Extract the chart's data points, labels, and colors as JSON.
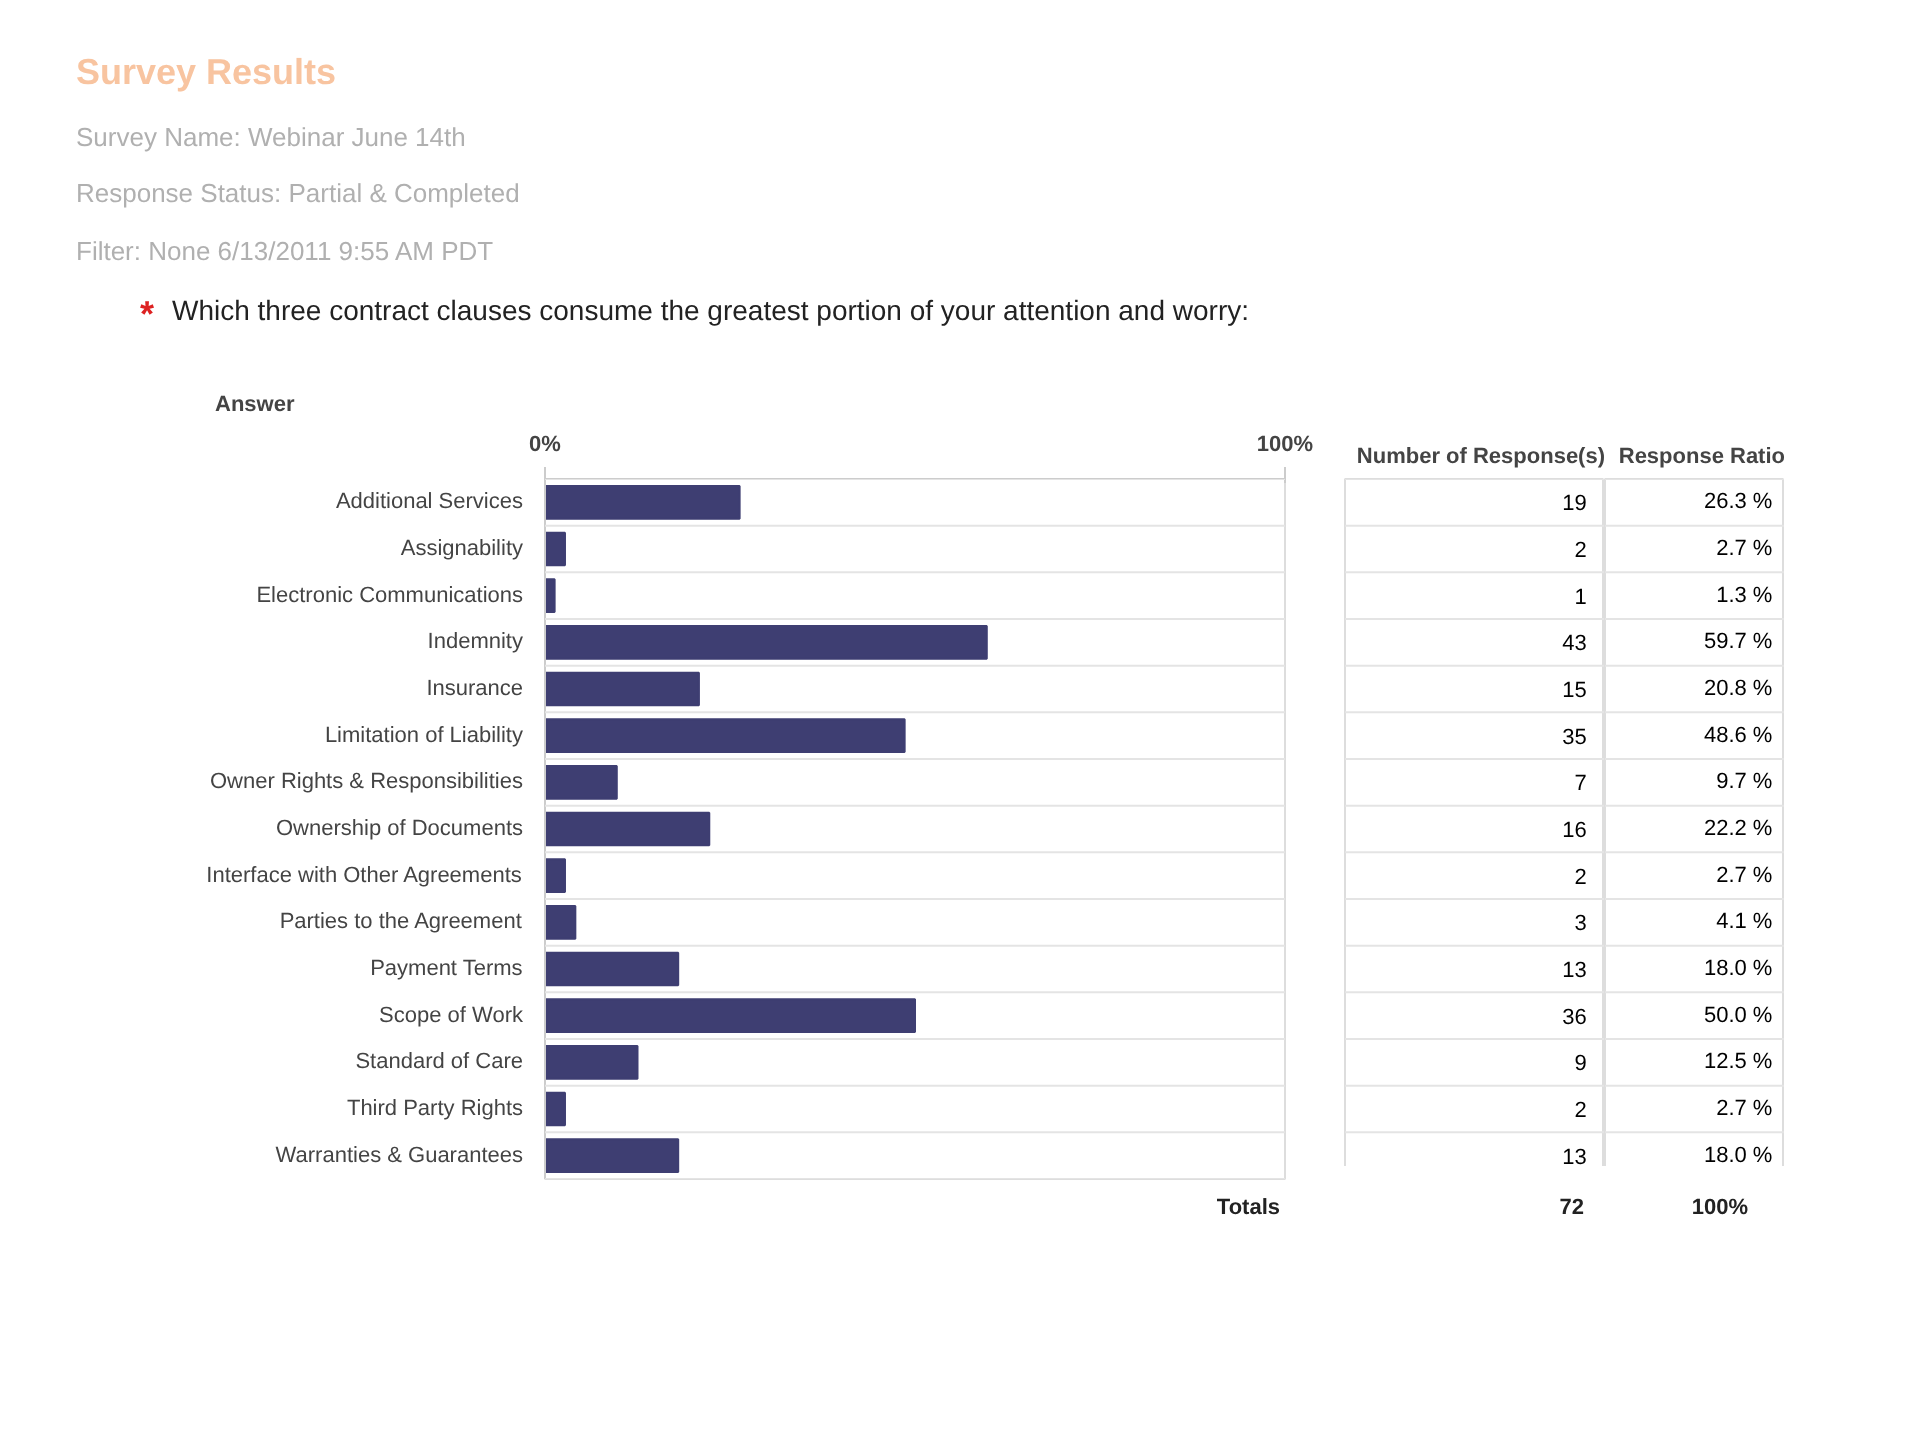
{
  "chart_data": {
    "type": "bar",
    "orientation": "horizontal",
    "title": "Survey Results",
    "annotations": [
      "Survey Name: Webinar June 14th",
      "Response Status: Partial & Completed",
      "Filter: None    6/13/2011 9:55 AM PDT",
      "*",
      "Which three contract clauses consume the greatest portion of your attention and worry:",
      "Answer",
      "Number of Response(s)",
      "Totals",
      "72",
      "100%",
      "19",
      "2",
      "1",
      "43",
      "15",
      "35",
      "7",
      "16",
      "2",
      "3",
      "13",
      "36",
      "9",
      "2",
      "13"
    ],
    "categories": [
      "Additional Services",
      "Assignability",
      "Electronic Communications",
      "Indemnity",
      "Insurance",
      "Limitation of Liability",
      "Owner Rights & Responsibilities",
      "Ownership of Documents",
      "Interface with Other Agreements",
      "Parties to the Agreement",
      "Payment Terms",
      "Scope of Work",
      "Standard of Care",
      "Third Party Rights",
      "Warranties & Guarantees"
    ],
    "series": [
      {
        "name": "Response Ratio",
        "color": "#3e3e72",
        "values": [
          26.3,
          2.7,
          1.3,
          59.7,
          20.8,
          48.6,
          9.7,
          22.2,
          2.7,
          4.1,
          18.0,
          50.0,
          12.5,
          2.7,
          18.0
        ],
        "value_labels": [
          "26.3 %",
          "2.7 %",
          "1.3 %",
          "59.7 %",
          "20.8 %",
          "48.6 %",
          "9.7 %",
          "22.2 %",
          "2.7 %",
          "4.1 %",
          "18.0 %",
          "50.0 %",
          "12.5 %",
          "2.7 %",
          "18.0 %"
        ]
      }
    ],
    "xlim": [
      0,
      100
    ],
    "xticks": [
      {
        "value": 0,
        "label": "0%"
      },
      {
        "value": 100,
        "label": "100%"
      }
    ]
  }
}
